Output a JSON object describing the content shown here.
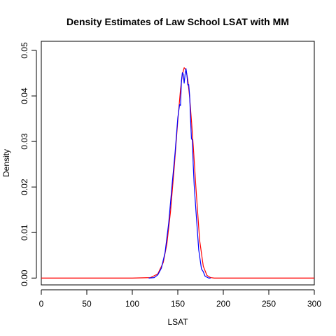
{
  "chart_data": {
    "type": "line",
    "title": "Density Estimates of Law School LSAT with MM",
    "xlabel": "LSAT",
    "ylabel": "Density",
    "xlim": [
      0,
      300
    ],
    "ylim": [
      -0.0015,
      0.052
    ],
    "xticks": [
      0,
      50,
      100,
      150,
      200,
      250,
      300
    ],
    "xtick_labels": [
      "0",
      "50",
      "100",
      "150",
      "200",
      "250",
      "300"
    ],
    "yticks": [
      0.0,
      0.01,
      0.02,
      0.03,
      0.04,
      0.05
    ],
    "ytick_labels": [
      "0.00",
      "0.01",
      "0.02",
      "0.03",
      "0.04",
      "0.05"
    ],
    "grid": false,
    "series": [
      {
        "color": "#ff0000",
        "x": [
          0,
          100,
          120,
          128,
          134,
          138,
          142,
          146,
          150,
          153,
          155,
          157,
          159,
          161,
          163,
          165,
          167,
          170,
          174,
          178,
          182,
          186,
          190,
          200,
          300
        ],
        "y": [
          0,
          0,
          0.0001,
          0.0009,
          0.0034,
          0.0075,
          0.0146,
          0.0241,
          0.0346,
          0.0415,
          0.0447,
          0.0462,
          0.0457,
          0.0435,
          0.0397,
          0.0346,
          0.029,
          0.0196,
          0.0083,
          0.0026,
          0.0006,
          0.0001,
          0,
          0,
          0
        ]
      },
      {
        "color": "#0000ff",
        "x": [
          118,
          124,
          128,
          132,
          136,
          140,
          144,
          147,
          150,
          152,
          153,
          154,
          155,
          156,
          157,
          158,
          159,
          160,
          161,
          162,
          163,
          164,
          165,
          166,
          167,
          168,
          170,
          173,
          176,
          178,
          180,
          182,
          184,
          186
        ],
        "y": [
          0,
          0.0001,
          0.0007,
          0.0022,
          0.0056,
          0.0121,
          0.0211,
          0.0275,
          0.0352,
          0.0381,
          0.0379,
          0.0433,
          0.0451,
          0.0448,
          0.0428,
          0.0447,
          0.046,
          0.0446,
          0.0424,
          0.0425,
          0.0401,
          0.0351,
          0.0306,
          0.0303,
          0.0247,
          0.0204,
          0.0146,
          0.0062,
          0.002,
          0.0014,
          0.0004,
          0.0002,
          0.0,
          0
        ]
      }
    ]
  }
}
